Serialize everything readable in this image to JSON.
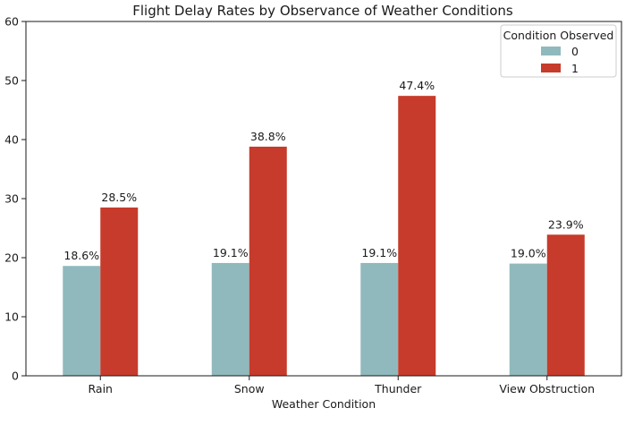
{
  "chart_data": {
    "type": "bar",
    "title": "Flight Delay Rates by Observance of Weather Conditions",
    "xlabel": "Weather Condition",
    "ylabel": "",
    "categories": [
      "Rain",
      "Snow",
      "Thunder",
      "View Obstruction"
    ],
    "ylim": [
      0,
      60
    ],
    "yticks": [
      "0",
      "10",
      "20",
      "30",
      "40",
      "50",
      "60"
    ],
    "series": [
      {
        "name": "0",
        "color": "#8fb9bd",
        "values": [
          18.6,
          19.1,
          19.1,
          19.0
        ],
        "labels": [
          "18.6%",
          "19.1%",
          "19.1%",
          "19.0%"
        ]
      },
      {
        "name": "1",
        "color": "#c63b2b",
        "values": [
          28.5,
          38.8,
          47.4,
          23.9
        ],
        "labels": [
          "28.5%",
          "38.8%",
          "47.4%",
          "23.9%"
        ]
      }
    ],
    "legend": {
      "title": "Condition Observed",
      "placement": "top-right"
    },
    "grid": false
  }
}
